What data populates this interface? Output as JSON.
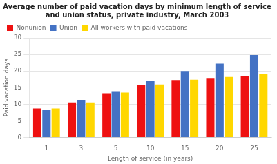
{
  "chart_data": {
    "type": "bar",
    "title": "Average number of paid vacation days by minimum length of service\nand union status, private industry, March 2003",
    "categories": [
      "1",
      "3",
      "5",
      "10",
      "15",
      "20",
      "25"
    ],
    "series": [
      {
        "name": "Nonunion",
        "color": "#EE1111",
        "values": [
          8.7,
          10.5,
          13.3,
          15.7,
          17.3,
          17.9,
          18.5
        ]
      },
      {
        "name": "Union",
        "color": "#4472C4",
        "values": [
          8.4,
          11.3,
          13.9,
          17.0,
          20.0,
          22.2,
          24.8
        ]
      },
      {
        "name": "All workers with paid vacations",
        "color": "#FFD700",
        "values": [
          8.7,
          10.5,
          13.5,
          15.9,
          17.4,
          18.2,
          19.1
        ]
      }
    ],
    "xlabel": "Length of service (in years)",
    "ylabel": "Paid vacation days",
    "ylim": [
      0,
      30
    ],
    "yticks": [
      0,
      5,
      10,
      15,
      20,
      25,
      30
    ],
    "grid": true,
    "legend": "upper left"
  }
}
